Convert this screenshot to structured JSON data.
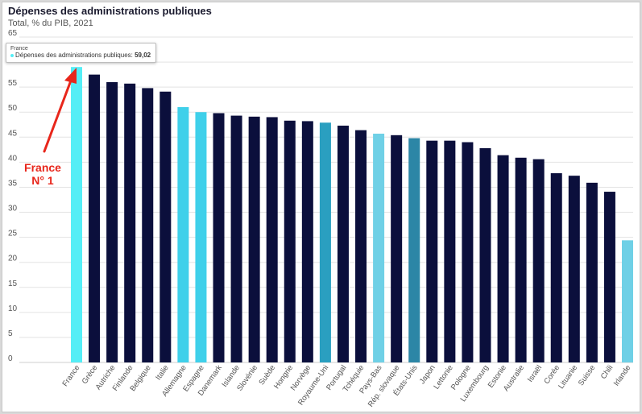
{
  "title": "Dépenses des administrations publiques",
  "subtitle": "Total, % du PIB, 2021",
  "tooltip": {
    "country": "France",
    "series": "Dépenses des administrations publiques:",
    "value": "59,02"
  },
  "annotation": {
    "line1": "France",
    "line2": "N° 1"
  },
  "colors": {
    "highlight": "#55eef6",
    "dark": "#0b0f3c",
    "light_blue": "#3fd0ea",
    "mid_blue": "#2a9fc0",
    "pale_blue": "#6fd0e6",
    "teal": "#2c86a6",
    "arrow": "#e8261b"
  },
  "chart_data": {
    "type": "bar",
    "ylim": [
      0,
      65
    ],
    "yticks": [
      0,
      5,
      10,
      15,
      20,
      25,
      30,
      35,
      40,
      45,
      50,
      55,
      60,
      65
    ],
    "grid": true,
    "categories": [
      "France",
      "Grèce",
      "Autriche",
      "Finlande",
      "Belgique",
      "Italie",
      "Allemagne",
      "Espagne",
      "Danemark",
      "Islande",
      "Slovénie",
      "Suède",
      "Hongrie",
      "Norvège",
      "Royaume-Uni",
      "Portugal",
      "Tchéquie",
      "Pays-Bas",
      "Rép. slovaque",
      "États-Unis",
      "Japon",
      "Lettonie",
      "Pologne",
      "Luxembourg",
      "Estonie",
      "Australie",
      "Israël",
      "Corée",
      "Lituanie",
      "Suisse",
      "Chili",
      "Irlande"
    ],
    "values": [
      59.02,
      57.5,
      56.0,
      55.7,
      54.8,
      54.1,
      51.0,
      50.0,
      49.8,
      49.3,
      49.1,
      49.0,
      48.3,
      48.2,
      47.9,
      47.3,
      46.4,
      45.7,
      45.4,
      44.8,
      44.3,
      44.3,
      44.0,
      42.8,
      41.4,
      40.9,
      40.6,
      37.8,
      37.3,
      35.9,
      34.1,
      24.4
    ],
    "bar_colors": [
      "highlight",
      "dark",
      "dark",
      "dark",
      "dark",
      "dark",
      "light_blue",
      "light_blue",
      "dark",
      "dark",
      "dark",
      "dark",
      "dark",
      "dark",
      "mid_blue",
      "dark",
      "dark",
      "pale_blue",
      "dark",
      "teal",
      "dark",
      "dark",
      "dark",
      "dark",
      "dark",
      "dark",
      "dark",
      "dark",
      "dark",
      "dark",
      "dark",
      "pale_blue"
    ]
  }
}
